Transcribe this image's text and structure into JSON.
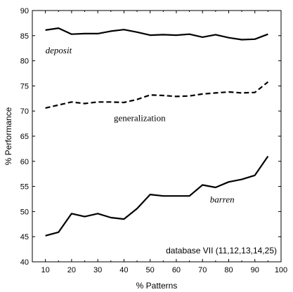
{
  "chart_data": {
    "type": "line",
    "title": "",
    "xlabel": "% Patterns",
    "ylabel": "% Performance",
    "xlim": [
      5,
      100
    ],
    "ylim": [
      40,
      90
    ],
    "xticks": [
      10,
      20,
      30,
      40,
      50,
      60,
      70,
      80,
      90,
      100
    ],
    "yticks": [
      40,
      45,
      50,
      55,
      60,
      65,
      70,
      75,
      80,
      85,
      90
    ],
    "grid": false,
    "annotation": "database VII (11,12,13,14,25)",
    "series": [
      {
        "name": "deposit",
        "label_style": "italic",
        "line_style": "solid",
        "x": [
          10,
          15,
          20,
          25,
          30,
          35,
          40,
          45,
          50,
          55,
          60,
          65,
          70,
          75,
          80,
          85,
          90,
          95
        ],
        "y": [
          86.1,
          86.5,
          85.3,
          85.4,
          85.4,
          85.9,
          86.2,
          85.7,
          85.1,
          85.2,
          85.1,
          85.3,
          84.7,
          85.2,
          84.6,
          84.2,
          84.3,
          85.3
        ]
      },
      {
        "name": "generalization",
        "label_style": "normal",
        "line_style": "dashed",
        "x": [
          10,
          15,
          20,
          25,
          30,
          35,
          40,
          45,
          50,
          55,
          60,
          65,
          70,
          75,
          80,
          85,
          90,
          95
        ],
        "y": [
          70.6,
          71.2,
          71.8,
          71.5,
          71.8,
          71.8,
          71.7,
          72.3,
          73.2,
          73.1,
          72.9,
          73.0,
          73.4,
          73.6,
          73.8,
          73.6,
          73.7,
          75.8
        ]
      },
      {
        "name": "barren",
        "label_style": "italic",
        "line_style": "solid",
        "x": [
          10,
          15,
          20,
          25,
          30,
          35,
          40,
          45,
          50,
          55,
          60,
          65,
          70,
          75,
          80,
          85,
          90,
          95
        ],
        "y": [
          45.2,
          45.9,
          49.6,
          49.0,
          49.6,
          48.8,
          48.5,
          50.6,
          53.4,
          53.1,
          53.1,
          53.1,
          55.3,
          54.8,
          55.9,
          56.4,
          57.2,
          61.0
        ]
      }
    ]
  }
}
